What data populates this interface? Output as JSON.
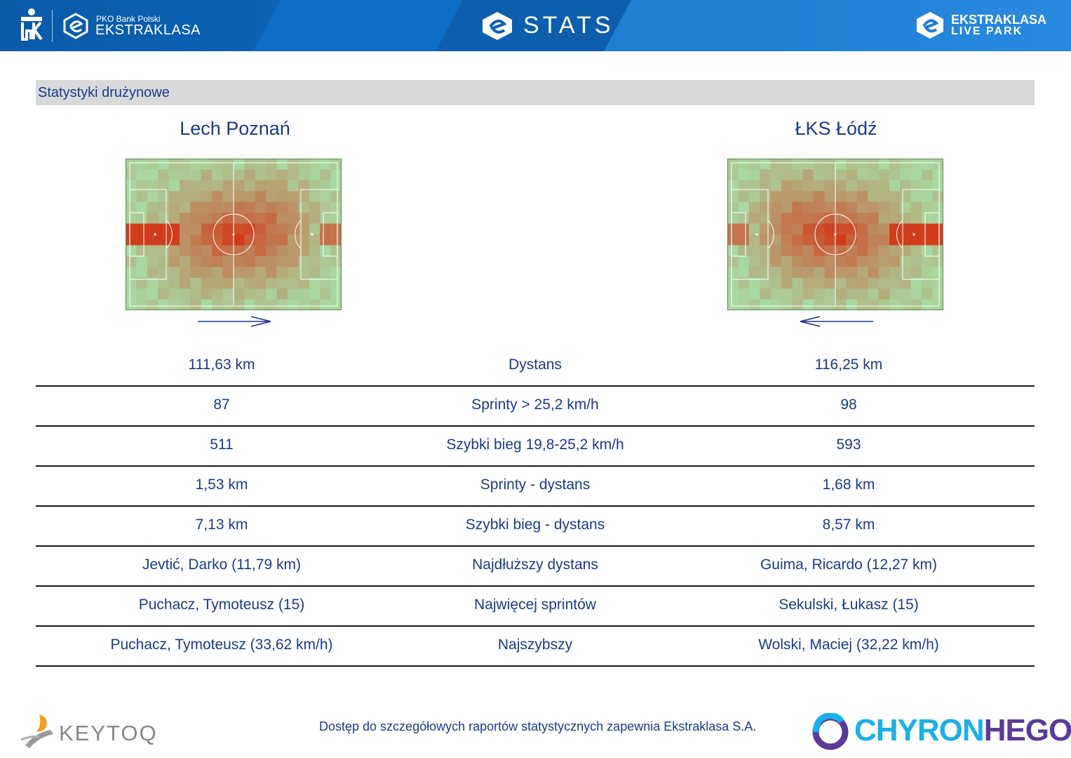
{
  "header": {
    "pko_small": "PKO Bank Polski",
    "pko_big": "EKSTRAKLASA",
    "center_title": "STATS",
    "right_line1": "EKSTRAKLASA",
    "right_line2": "LIVE PARK"
  },
  "section": {
    "title": "Statystyki drużynowe"
  },
  "teams": {
    "home": "Lech Poznań",
    "away": "ŁKS Łódź"
  },
  "stats": [
    {
      "home": "111,63 km",
      "label": "Dystans",
      "away": "116,25 km"
    },
    {
      "home": "87",
      "label": "Sprinty > 25,2 km/h",
      "away": "98"
    },
    {
      "home": "511",
      "label": "Szybki bieg 19,8-25,2 km/h",
      "away": "593"
    },
    {
      "home": "1,53 km",
      "label": "Sprinty - dystans",
      "away": "1,68 km"
    },
    {
      "home": "7,13 km",
      "label": "Szybki bieg - dystans",
      "away": "8,57 km"
    },
    {
      "home": "Jevtić, Darko (11,79 km)",
      "label": "Najdłuższy dystans",
      "away": "Guima, Ricardo (12,27 km)"
    },
    {
      "home": "Puchacz, Tymoteusz (15)",
      "label": "Najwięcej sprintów",
      "away": "Sekulski, Łukasz (15)"
    },
    {
      "home": "Puchacz, Tymoteusz (33,62 km/h)",
      "label": "Najszybszy",
      "away": "Wolski, Maciej (32,22 km/h)"
    }
  ],
  "footer": {
    "keytoq": "KEYTOQ",
    "note": "Dostęp do szczegółowych raportów statystycznych zapewnia Ekstraklasa S.A.",
    "chyron_a": "CHYRON",
    "chyron_b": "HEGO"
  },
  "colors": {
    "header_blue": "#0d5fae",
    "text_blue": "#1a3a8c",
    "pitch_green": "#a9d8a0",
    "heat_red": "#d23a1a"
  },
  "icons": [
    "pko-logo-icon",
    "ekstraklasa-logo-icon",
    "stats-logo-icon",
    "livepark-logo-icon",
    "keytoq-logo-icon",
    "chyron-logo-icon"
  ]
}
